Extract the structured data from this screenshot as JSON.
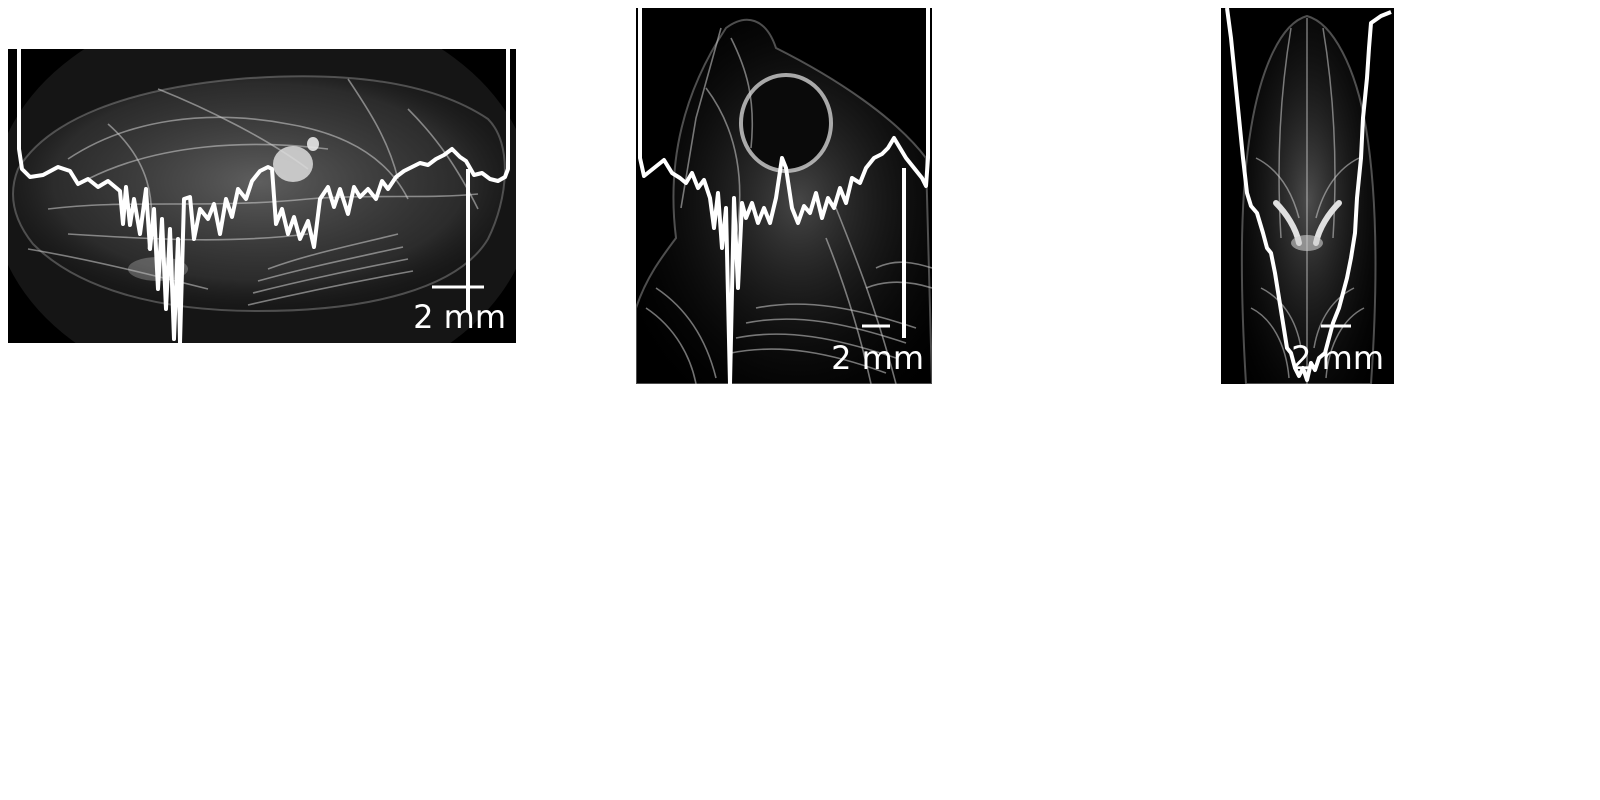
{
  "panels": [
    {
      "view": "lateral",
      "scale_bar_label": "2 mm"
    },
    {
      "view": "oblique",
      "scale_bar_label": "2 mm"
    },
    {
      "view": "ventral",
      "scale_bar_label": "2 mm"
    }
  ],
  "colors": {
    "background": "#000000",
    "overlay": "#ffffff",
    "page": "#ffffff"
  }
}
